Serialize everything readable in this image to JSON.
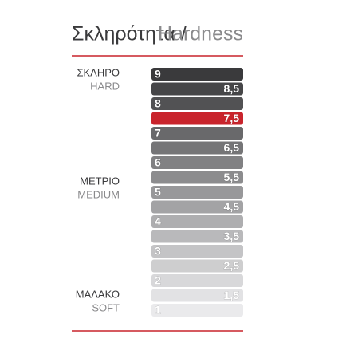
{
  "title": {
    "greek": "Σκληρότητα /",
    "english": "Hardness"
  },
  "side_labels": [
    {
      "greek": "ΣΚΛΗΡΟ",
      "english": "HARD"
    },
    {
      "greek": "ΜΕΤΡΙΟ",
      "english": "MEDIUM"
    },
    {
      "greek": "ΜΑΛΑΚΟ",
      "english": "SOFT"
    }
  ],
  "scale": [
    {
      "label": "9",
      "color": "#3a3a3c"
    },
    {
      "label": "8,5",
      "color": "#464648"
    },
    {
      "label": "8",
      "color": "#525254"
    },
    {
      "label": "7,5",
      "color": "#c9242c"
    },
    {
      "label": "7",
      "color": "#69696b"
    },
    {
      "label": "6,5",
      "color": "#757577"
    },
    {
      "label": "6",
      "color": "#818183"
    },
    {
      "label": "5,5",
      "color": "#8c8c8e"
    },
    {
      "label": "5",
      "color": "#98989a"
    },
    {
      "label": "4,5",
      "color": "#a3a3a5"
    },
    {
      "label": "4",
      "color": "#aeaeb0"
    },
    {
      "label": "3,5",
      "color": "#b9b9bb"
    },
    {
      "label": "3",
      "color": "#c4c4c6"
    },
    {
      "label": "2,5",
      "color": "#cececf"
    },
    {
      "label": "2",
      "color": "#d8d8da"
    },
    {
      "label": "1,5",
      "color": "#e2e2e4"
    },
    {
      "label": "1",
      "color": "#eaeaec"
    }
  ]
}
